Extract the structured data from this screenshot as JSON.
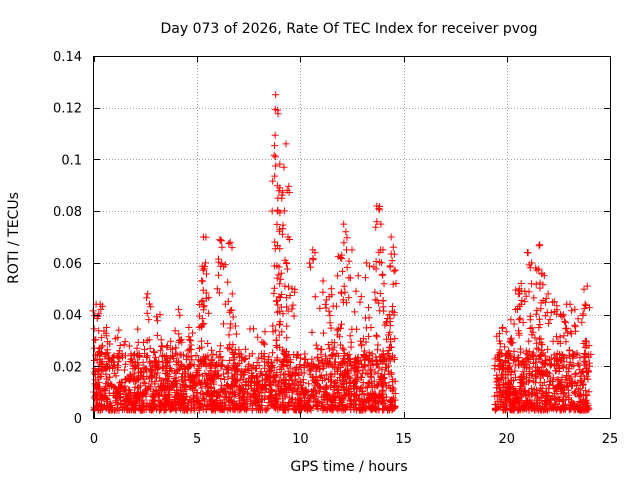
{
  "chart_data": {
    "type": "scatter",
    "title": "Day 073 of 2026, Rate Of TEC Index for receiver pvog",
    "xlabel": "GPS time / hours",
    "ylabel": "ROTI / TECUs",
    "xlim": [
      0,
      25
    ],
    "ylim": [
      0,
      0.14
    ],
    "x_ticks": [
      "0",
      "5",
      "10",
      "15",
      "20",
      "25"
    ],
    "y_ticks": [
      "0",
      "0.02",
      "0.04",
      "0.06",
      "0.08",
      "0.1",
      "0.12",
      "0.14"
    ],
    "grid": true,
    "marker": "plus",
    "color": "#ff0000",
    "coverage_segments": [
      [
        0,
        14.6
      ],
      [
        19.4,
        24.0
      ]
    ],
    "peaks": [
      {
        "x": 0.1,
        "y": 0.044
      },
      {
        "x": 0.3,
        "y": 0.044
      },
      {
        "x": 0.6,
        "y": 0.035
      },
      {
        "x": 1.2,
        "y": 0.034
      },
      {
        "x": 2.6,
        "y": 0.048
      },
      {
        "x": 3.2,
        "y": 0.04
      },
      {
        "x": 4.1,
        "y": 0.042
      },
      {
        "x": 4.6,
        "y": 0.035
      },
      {
        "x": 5.2,
        "y": 0.045
      },
      {
        "x": 5.3,
        "y": 0.07
      },
      {
        "x": 5.4,
        "y": 0.06
      },
      {
        "x": 6.1,
        "y": 0.069
      },
      {
        "x": 6.2,
        "y": 0.066
      },
      {
        "x": 6.6,
        "y": 0.068
      },
      {
        "x": 6.7,
        "y": 0.048
      },
      {
        "x": 8.8,
        "y": 0.125
      },
      {
        "x": 8.9,
        "y": 0.119
      },
      {
        "x": 8.8,
        "y": 0.101
      },
      {
        "x": 9.0,
        "y": 0.089
      },
      {
        "x": 8.9,
        "y": 0.08
      },
      {
        "x": 9.3,
        "y": 0.106
      },
      {
        "x": 9.2,
        "y": 0.097
      },
      {
        "x": 9.1,
        "y": 0.085
      },
      {
        "x": 9.4,
        "y": 0.07
      },
      {
        "x": 9.6,
        "y": 0.05
      },
      {
        "x": 10.6,
        "y": 0.065
      },
      {
        "x": 11.1,
        "y": 0.053
      },
      {
        "x": 11.5,
        "y": 0.05
      },
      {
        "x": 11.8,
        "y": 0.055
      },
      {
        "x": 12.1,
        "y": 0.075
      },
      {
        "x": 12.2,
        "y": 0.072
      },
      {
        "x": 12.0,
        "y": 0.063
      },
      {
        "x": 12.5,
        "y": 0.065
      },
      {
        "x": 12.8,
        "y": 0.055
      },
      {
        "x": 13.2,
        "y": 0.06
      },
      {
        "x": 13.7,
        "y": 0.082
      },
      {
        "x": 13.8,
        "y": 0.081
      },
      {
        "x": 13.9,
        "y": 0.075
      },
      {
        "x": 14.0,
        "y": 0.065
      },
      {
        "x": 14.4,
        "y": 0.07
      },
      {
        "x": 14.5,
        "y": 0.066
      },
      {
        "x": 14.3,
        "y": 0.04
      },
      {
        "x": 19.8,
        "y": 0.035
      },
      {
        "x": 20.2,
        "y": 0.038
      },
      {
        "x": 20.6,
        "y": 0.05
      },
      {
        "x": 20.7,
        "y": 0.052
      },
      {
        "x": 21.0,
        "y": 0.064
      },
      {
        "x": 21.2,
        "y": 0.06
      },
      {
        "x": 21.4,
        "y": 0.058
      },
      {
        "x": 21.6,
        "y": 0.067
      },
      {
        "x": 21.7,
        "y": 0.056
      },
      {
        "x": 22.0,
        "y": 0.048
      },
      {
        "x": 22.3,
        "y": 0.045
      },
      {
        "x": 22.6,
        "y": 0.04
      },
      {
        "x": 22.9,
        "y": 0.044
      },
      {
        "x": 23.3,
        "y": 0.042
      },
      {
        "x": 23.9,
        "y": 0.051
      },
      {
        "x": 23.8,
        "y": 0.044
      }
    ]
  }
}
